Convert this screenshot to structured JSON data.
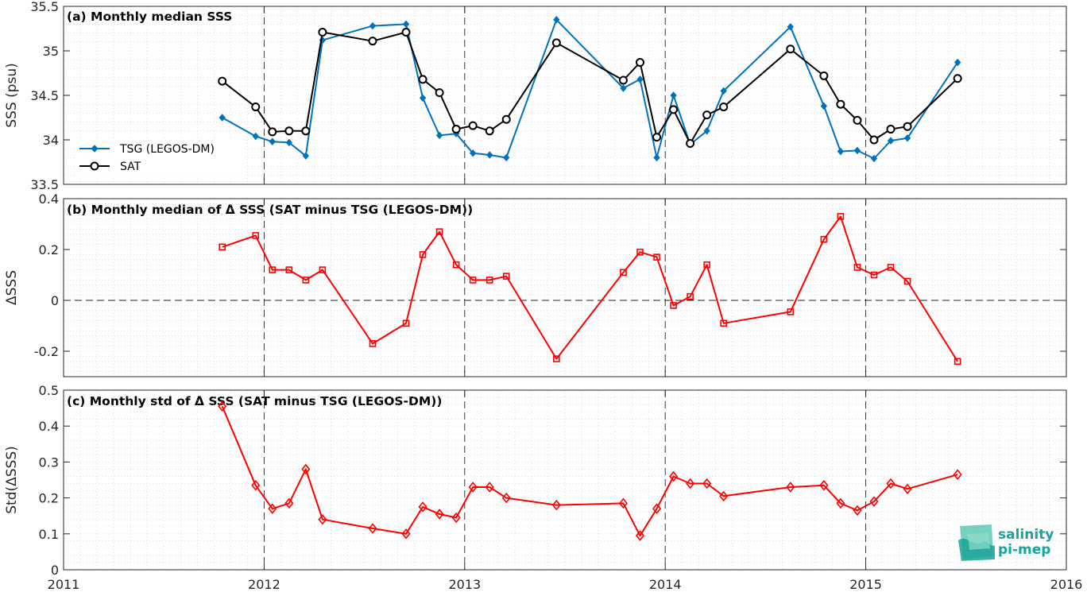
{
  "chart_data": [
    {
      "type": "line",
      "title": "(a) Monthly median SSS",
      "xlabel": "",
      "ylabel": "SSS (psu)",
      "xlim": [
        "2011",
        "2016"
      ],
      "ylim": [
        33.5,
        35.5
      ],
      "yticks": [
        "33.5",
        "34",
        "34.5",
        "35",
        "35.5"
      ],
      "grid": true,
      "legend": "left",
      "series": [
        {
          "name": "TSG (LEGOS-DM)",
          "color": "#0072bd",
          "marker": "diamond-filled",
          "points": [
            [
              "2011-10",
              34.25
            ],
            [
              "2011-12",
              34.04
            ],
            [
              "2012-01",
              33.98
            ],
            [
              "2012-02",
              33.97
            ],
            [
              "2012-03",
              33.82
            ],
            [
              "2012-04",
              35.12
            ],
            [
              "2012-07",
              35.28
            ],
            [
              "2012-09",
              35.3
            ],
            [
              "2012-10",
              34.47
            ],
            [
              "2012-11",
              34.05
            ],
            [
              "2012-12",
              34.07
            ],
            [
              "2013-01",
              33.85
            ],
            [
              "2013-02",
              33.83
            ],
            [
              "2013-03",
              33.8
            ],
            [
              "2013-06",
              35.35
            ],
            [
              "2013-10",
              34.58
            ],
            [
              "2013-11",
              34.68
            ],
            [
              "2013-12",
              33.8
            ],
            [
              "2014-01",
              34.5
            ],
            [
              "2014-02",
              33.95
            ],
            [
              "2014-03",
              34.1
            ],
            [
              "2014-04",
              34.55
            ],
            [
              "2014-08",
              35.27
            ],
            [
              "2014-10",
              34.38
            ],
            [
              "2014-11",
              33.87
            ],
            [
              "2014-12",
              33.88
            ],
            [
              "2015-01",
              33.79
            ],
            [
              "2015-02",
              33.99
            ],
            [
              "2015-03",
              34.02
            ],
            [
              "2015-06",
              34.87
            ]
          ]
        },
        {
          "name": "SAT",
          "color": "#000000",
          "marker": "circle-open",
          "points": [
            [
              "2011-10",
              34.66
            ],
            [
              "2011-12",
              34.37
            ],
            [
              "2012-01",
              34.09
            ],
            [
              "2012-02",
              34.1
            ],
            [
              "2012-03",
              34.1
            ],
            [
              "2012-04",
              35.21
            ],
            [
              "2012-07",
              35.11
            ],
            [
              "2012-09",
              35.21
            ],
            [
              "2012-10",
              34.68
            ],
            [
              "2012-11",
              34.53
            ],
            [
              "2012-12",
              34.12
            ],
            [
              "2013-01",
              34.16
            ],
            [
              "2013-02",
              34.1
            ],
            [
              "2013-03",
              34.23
            ],
            [
              "2013-06",
              35.09
            ],
            [
              "2013-10",
              34.67
            ],
            [
              "2013-11",
              34.87
            ],
            [
              "2013-12",
              34.03
            ],
            [
              "2014-01",
              34.34
            ],
            [
              "2014-02",
              33.96
            ],
            [
              "2014-03",
              34.28
            ],
            [
              "2014-04",
              34.37
            ],
            [
              "2014-08",
              35.02
            ],
            [
              "2014-10",
              34.72
            ],
            [
              "2014-11",
              34.4
            ],
            [
              "2014-12",
              34.22
            ],
            [
              "2015-01",
              34.0
            ],
            [
              "2015-02",
              34.12
            ],
            [
              "2015-03",
              34.15
            ],
            [
              "2015-06",
              34.69
            ]
          ]
        }
      ]
    },
    {
      "type": "line",
      "title": "(b) Monthly median of Δ SSS (SAT minus TSG (LEGOS-DM))",
      "xlabel": "",
      "ylabel": "ΔSSS",
      "xlim": [
        "2011",
        "2016"
      ],
      "ylim": [
        -0.3,
        0.4
      ],
      "yticks": [
        "-0.2",
        "0",
        "0.2",
        "0.4"
      ],
      "grid": true,
      "series": [
        {
          "color": "#ff0000",
          "marker": "square-open",
          "points": [
            [
              "2011-10",
              0.21
            ],
            [
              "2011-12",
              0.255
            ],
            [
              "2012-01",
              0.12
            ],
            [
              "2012-02",
              0.12
            ],
            [
              "2012-03",
              0.08
            ],
            [
              "2012-04",
              0.12
            ],
            [
              "2012-07",
              -0.17
            ],
            [
              "2012-09",
              -0.09
            ],
            [
              "2012-10",
              0.18
            ],
            [
              "2012-11",
              0.27
            ],
            [
              "2012-12",
              0.14
            ],
            [
              "2013-01",
              0.08
            ],
            [
              "2013-02",
              0.08
            ],
            [
              "2013-03",
              0.095
            ],
            [
              "2013-06",
              -0.23
            ],
            [
              "2013-10",
              0.11
            ],
            [
              "2013-11",
              0.19
            ],
            [
              "2013-12",
              0.17
            ],
            [
              "2014-01",
              -0.02
            ],
            [
              "2014-02",
              0.015
            ],
            [
              "2014-03",
              0.14
            ],
            [
              "2014-04",
              -0.09
            ],
            [
              "2014-08",
              -0.045
            ],
            [
              "2014-10",
              0.24
            ],
            [
              "2014-11",
              0.33
            ],
            [
              "2014-12",
              0.13
            ],
            [
              "2015-01",
              0.1
            ],
            [
              "2015-02",
              0.13
            ],
            [
              "2015-03",
              0.075
            ],
            [
              "2015-06",
              -0.24
            ]
          ]
        }
      ]
    },
    {
      "type": "line",
      "title": "(c) Monthly std of Δ SSS (SAT minus TSG (LEGOS-DM))",
      "xlabel": "",
      "ylabel": "Std(ΔSSS)",
      "xlim": [
        "2011",
        "2016"
      ],
      "ylim": [
        0,
        0.5
      ],
      "yticks": [
        "0",
        "0.1",
        "0.2",
        "0.3",
        "0.4",
        "0.5"
      ],
      "xticks": [
        "2011",
        "2012",
        "2013",
        "2014",
        "2015",
        "2016"
      ],
      "grid": true,
      "series": [
        {
          "color": "#ff0000",
          "marker": "diamond-open",
          "points": [
            [
              "2011-10",
              0.455
            ],
            [
              "2011-12",
              0.235
            ],
            [
              "2012-01",
              0.17
            ],
            [
              "2012-02",
              0.185
            ],
            [
              "2012-03",
              0.28
            ],
            [
              "2012-04",
              0.14
            ],
            [
              "2012-07",
              0.115
            ],
            [
              "2012-09",
              0.1
            ],
            [
              "2012-10",
              0.175
            ],
            [
              "2012-11",
              0.155
            ],
            [
              "2012-12",
              0.145
            ],
            [
              "2013-01",
              0.23
            ],
            [
              "2013-02",
              0.23
            ],
            [
              "2013-03",
              0.2
            ],
            [
              "2013-06",
              0.18
            ],
            [
              "2013-10",
              0.185
            ],
            [
              "2013-11",
              0.095
            ],
            [
              "2013-12",
              0.17
            ],
            [
              "2014-01",
              0.26
            ],
            [
              "2014-02",
              0.24
            ],
            [
              "2014-03",
              0.24
            ],
            [
              "2014-04",
              0.205
            ],
            [
              "2014-08",
              0.23
            ],
            [
              "2014-10",
              0.235
            ],
            [
              "2014-11",
              0.185
            ],
            [
              "2014-12",
              0.165
            ],
            [
              "2015-01",
              0.19
            ],
            [
              "2015-02",
              0.24
            ],
            [
              "2015-03",
              0.225
            ],
            [
              "2015-06",
              0.265
            ]
          ]
        }
      ]
    }
  ],
  "logo": {
    "line1": "salinity",
    "line2": "pi-mep",
    "color": "#1aa39a"
  }
}
